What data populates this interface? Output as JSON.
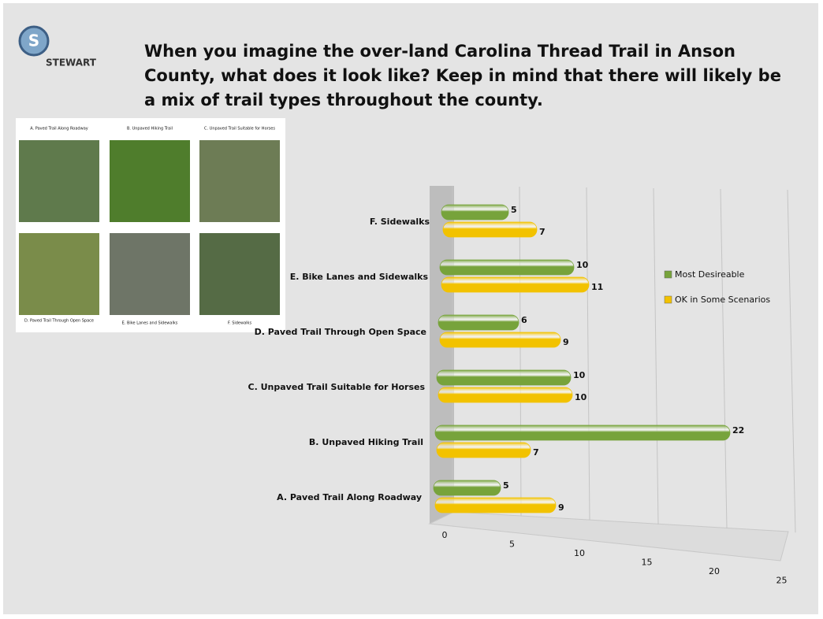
{
  "logo": {
    "mark": "S",
    "name": "STEWART"
  },
  "photos": {
    "captions": [
      "A. Paved Trail Along Roadway",
      "B. Unpaved Hiking Trail",
      "C. Unpaved Trail Suitable for Horses",
      "D. Paved Trail Through Open Space",
      "E. Bike Lanes and Sidewalks",
      "F. Sidewalks"
    ]
  },
  "chart_data": {
    "type": "hbar3d",
    "title": "When you imagine the over-land Carolina Thread Trail in Anson County, what does it look like?  Keep in mind that there will likely be a mix of trail types throughout the county.",
    "categories": [
      "A.  Paved Trail Along Roadway",
      "B.  Unpaved Hiking Trail",
      "C.  Unpaved Trail Suitable for Horses",
      "D.  Paved Trail Through Open Space",
      "E.  Bike Lanes and Sidewalks",
      "F.  Sidewalks"
    ],
    "series": [
      {
        "name": "Most Desireable",
        "color": "#77a33b",
        "values": [
          5,
          22,
          10,
          6,
          10,
          5
        ]
      },
      {
        "name": "OK in Some Scenarios",
        "color": "#f2c200",
        "values": [
          9,
          7,
          10,
          9,
          11,
          7
        ]
      }
    ],
    "xlim": [
      0,
      25
    ],
    "xticks": [
      0,
      5,
      10,
      15,
      20,
      25
    ],
    "grid": true,
    "legend": "right"
  }
}
